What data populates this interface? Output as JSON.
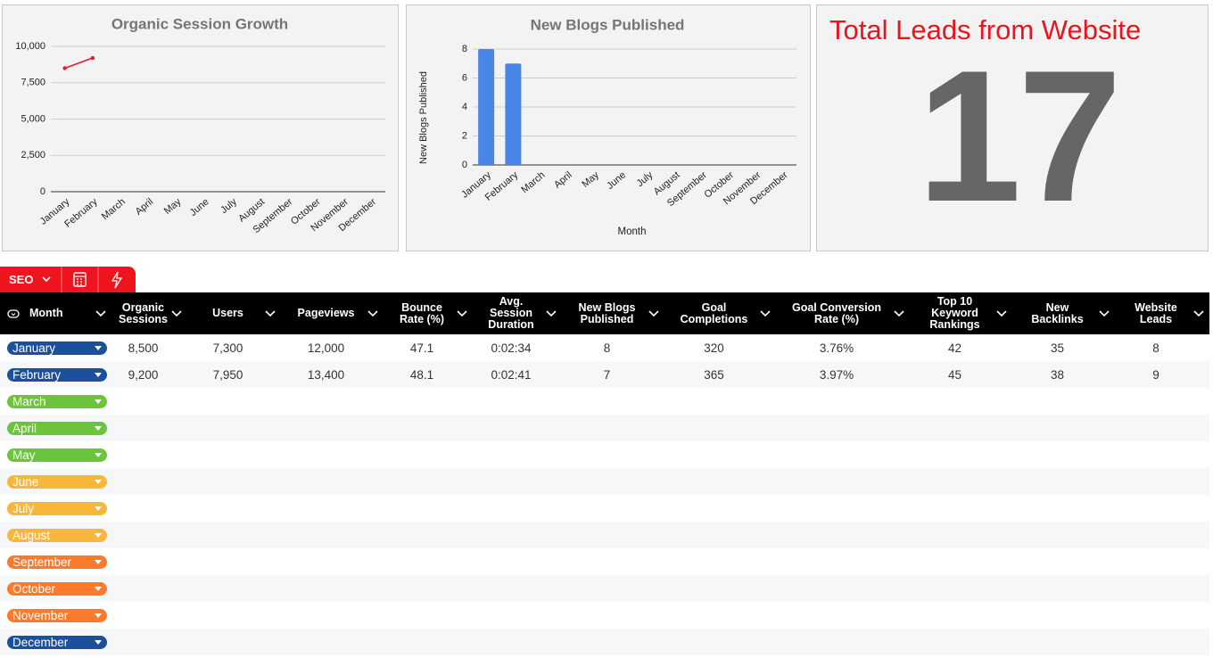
{
  "chart_data": [
    {
      "type": "line",
      "title": "Organic Session Growth",
      "categories": [
        "January",
        "February",
        "March",
        "April",
        "May",
        "June",
        "July",
        "August",
        "September",
        "October",
        "November",
        "December"
      ],
      "values": [
        8500,
        9200,
        null,
        null,
        null,
        null,
        null,
        null,
        null,
        null,
        null,
        null
      ],
      "color": "#e0202a",
      "ylim": [
        0,
        10000
      ],
      "yticks": [
        0,
        {
          "value": 2500,
          "label": "2,500"
        },
        {
          "value": 5000,
          "label": "5,000"
        },
        {
          "value": 7500,
          "label": "7,500"
        },
        {
          "value": 10000,
          "label": "10,000"
        }
      ],
      "grid": true
    },
    {
      "type": "bar",
      "title": "New Blogs Published",
      "categories": [
        "January",
        "February",
        "March",
        "April",
        "May",
        "June",
        "July",
        "August",
        "September",
        "October",
        "November",
        "December"
      ],
      "values": [
        8,
        7,
        null,
        null,
        null,
        null,
        null,
        null,
        null,
        null,
        null,
        null
      ],
      "color": "#4a86e8",
      "ylim": [
        0,
        8
      ],
      "yticks": [
        0,
        2,
        4,
        6,
        8
      ],
      "grid": true,
      "xlabel": "Month",
      "ylabel": "New Blogs Published"
    }
  ],
  "scorecard": {
    "title": "Total Leads from Website",
    "value": "17"
  },
  "toolbar": {
    "tab": "SEO"
  },
  "table": {
    "headers": [
      "Month",
      "Organic Sessions",
      "Users",
      "Pageviews",
      "Bounce Rate (%)",
      "Avg. Session Duration",
      "New Blogs Published",
      "Goal Completions",
      "Goal Conversion Rate (%)",
      "Top 10 Keyword Rankings",
      "New Backlinks",
      "Website Leads"
    ],
    "rows": [
      {
        "month": "January",
        "color": "#1c4f9c",
        "cells": [
          "8,500",
          "7,300",
          "12,000",
          "47.1",
          "0:02:34",
          "8",
          "320",
          "3.76%",
          "42",
          "35",
          "8"
        ]
      },
      {
        "month": "February",
        "color": "#1c4f9c",
        "cells": [
          "9,200",
          "7,950",
          "13,400",
          "48.1",
          "0:02:41",
          "7",
          "365",
          "3.97%",
          "45",
          "38",
          "9"
        ]
      },
      {
        "month": "March",
        "color": "#6cc33c"
      },
      {
        "month": "April",
        "color": "#6cc33c"
      },
      {
        "month": "May",
        "color": "#6cc33c"
      },
      {
        "month": "June",
        "color": "#f8b73a"
      },
      {
        "month": "July",
        "color": "#f8b73a"
      },
      {
        "month": "August",
        "color": "#f8b73a"
      },
      {
        "month": "September",
        "color": "#fb7a2c"
      },
      {
        "month": "October",
        "color": "#fb7a2c"
      },
      {
        "month": "November",
        "color": "#fb7a2c"
      },
      {
        "month": "December",
        "color": "#1c4f9c"
      }
    ]
  }
}
